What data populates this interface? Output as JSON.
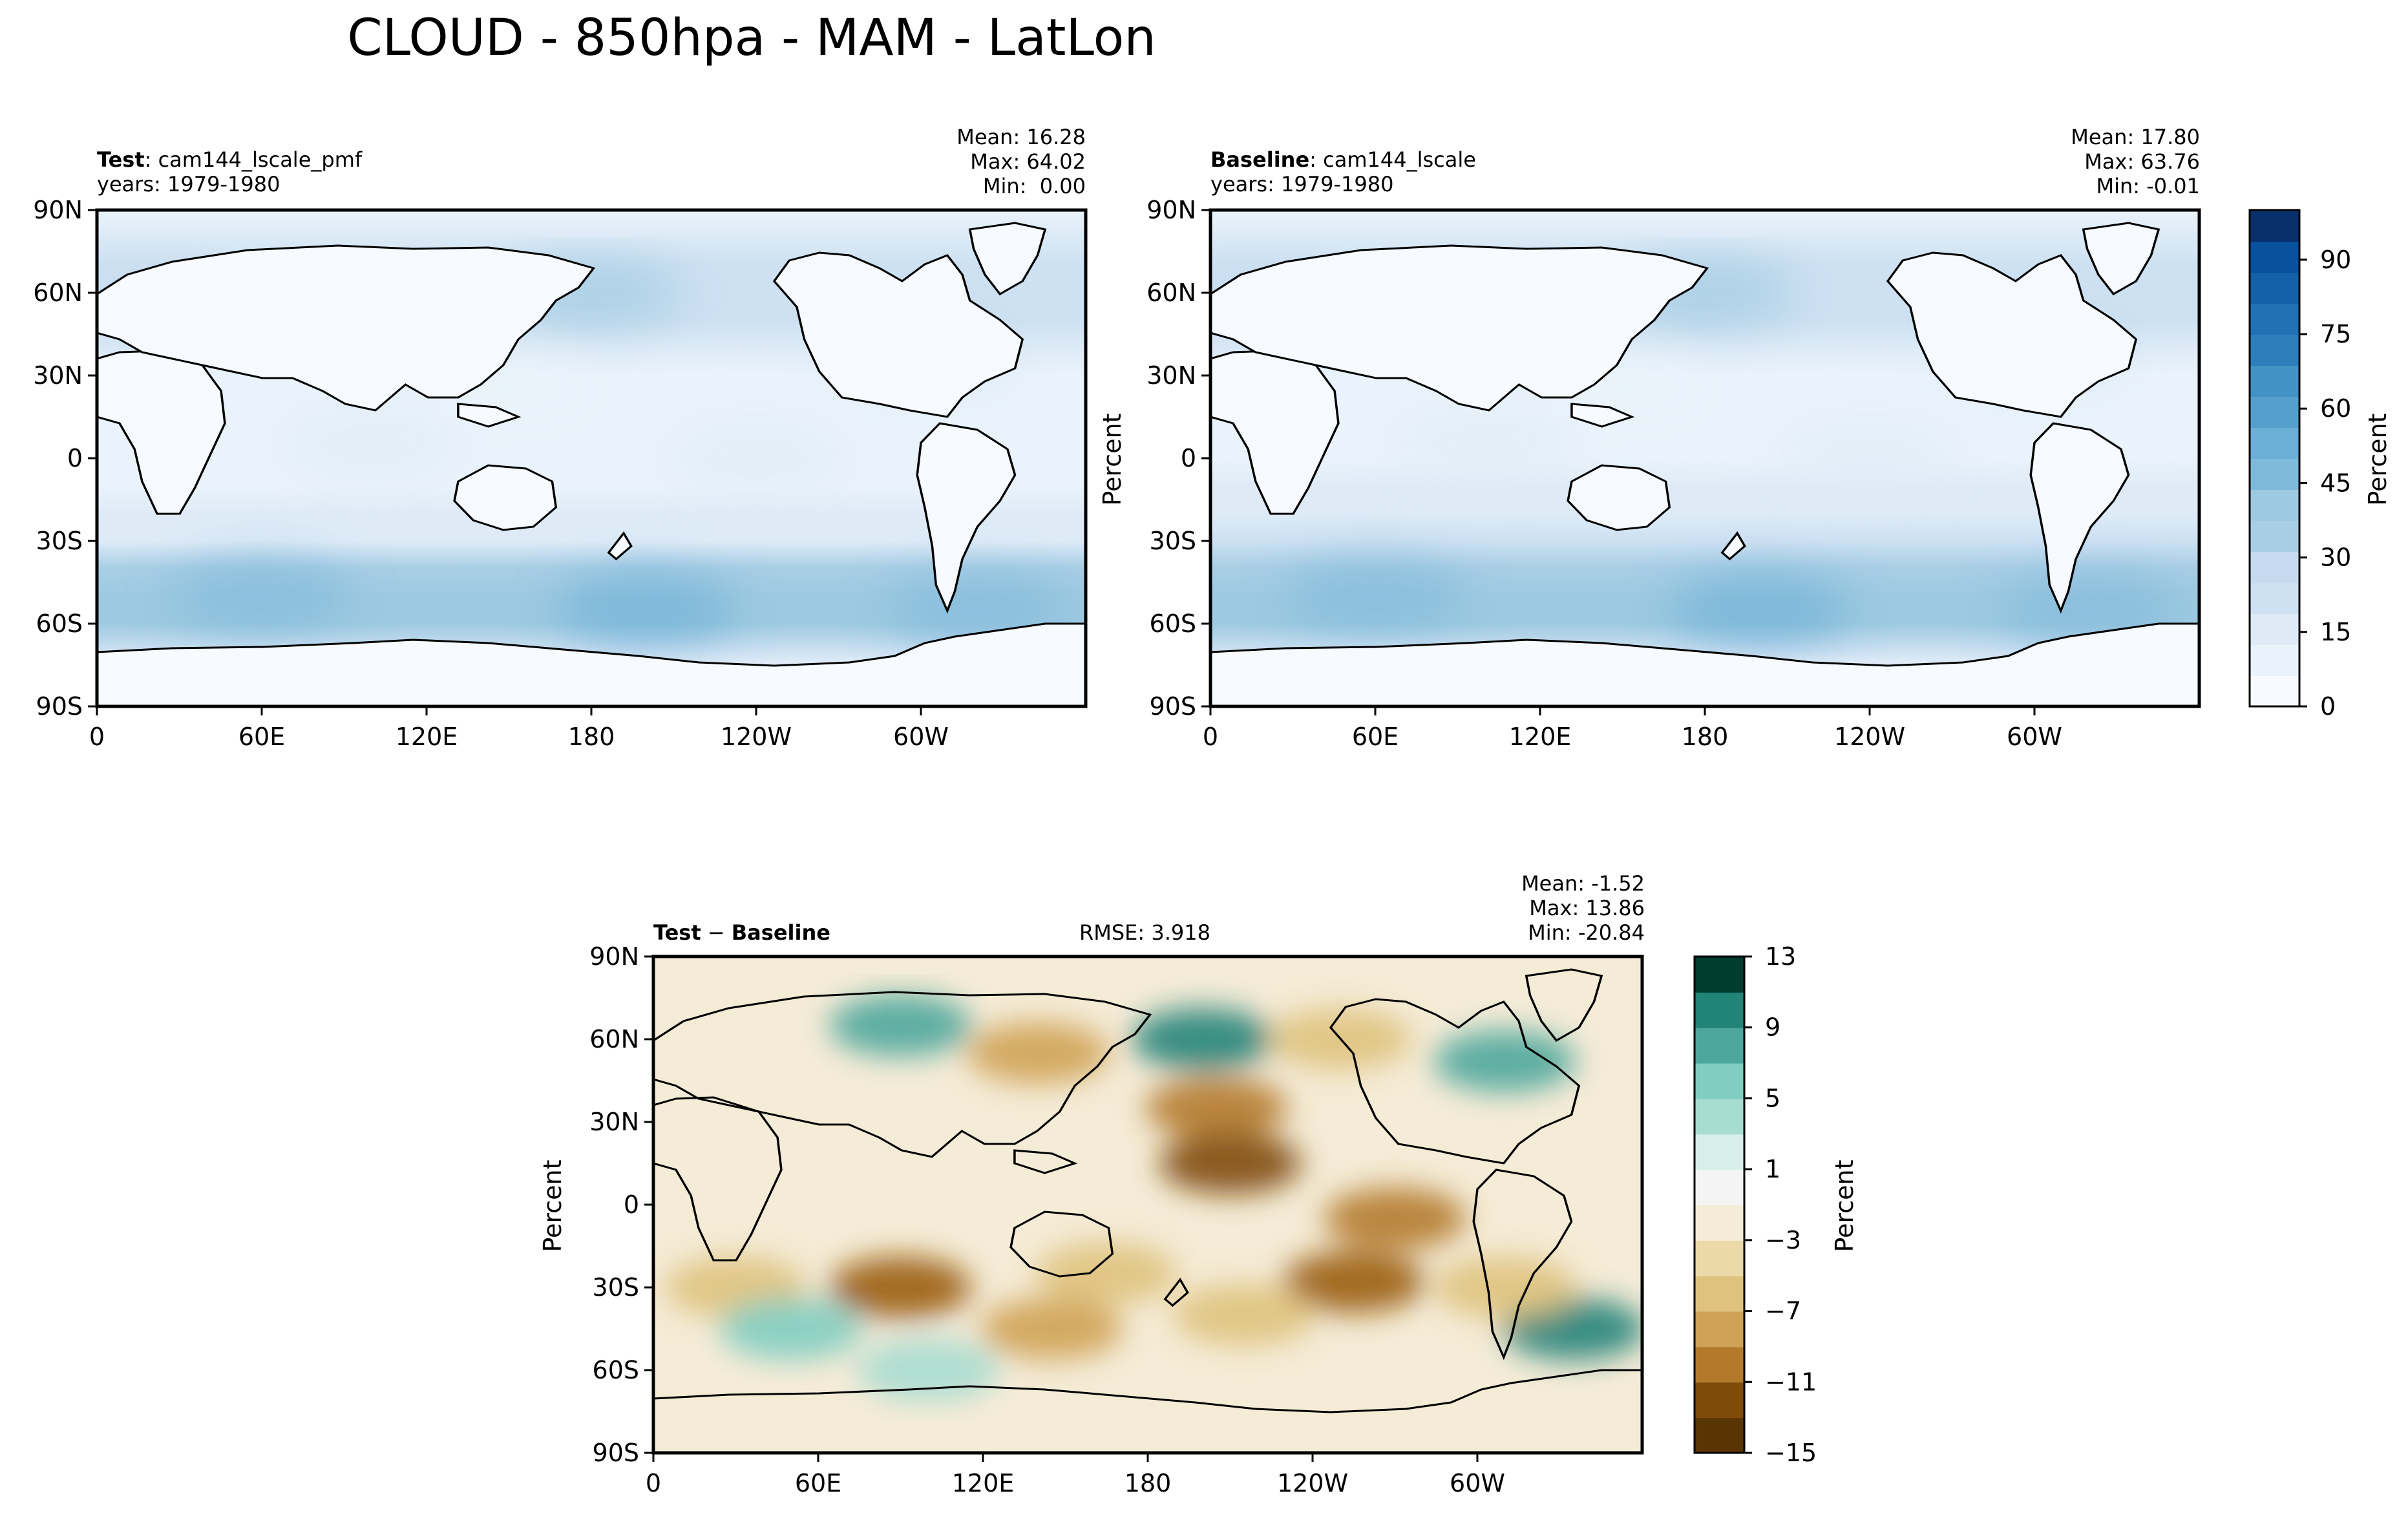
{
  "figure_title": "CLOUD - 850hpa - MAM - LatLon",
  "panels": {
    "test": {
      "label_bold": "Test",
      "label_rest": ": cam144_lscale_pmf",
      "years": "years: 1979-1980",
      "mean": "Mean: 16.28",
      "max": "Max: 64.02",
      "min": "Min:  0.00"
    },
    "baseline": {
      "label_bold": "Baseline",
      "label_rest": ": cam144_lscale",
      "years": "years: 1979-1980",
      "mean": "Mean: 17.80",
      "max": "Max: 63.76",
      "min": "Min: -0.01",
      "ylabel": "Percent"
    },
    "diff": {
      "label_bold_1": "Test",
      "label_minus": " − ",
      "label_bold_2": "Baseline",
      "rmse": "RMSE: 3.918",
      "mean": "Mean: -1.52",
      "max": "Max: 13.86",
      "min": "Min: -20.84",
      "ylabel": "Percent"
    }
  },
  "colors": {
    "blues": [
      "#f7fbff",
      "#eaf3fb",
      "#deebf7",
      "#cde1f2",
      "#c6dbef",
      "#a8cee5",
      "#9ecae1",
      "#7fb9da",
      "#6baed6",
      "#559fcd",
      "#4292c6",
      "#2f7ebc",
      "#2171b5",
      "#1461a8",
      "#08519c",
      "#08306b"
    ],
    "brbg": [
      "#5a3504",
      "#7f4b09",
      "#9a5d12",
      "#b47a2c",
      "#cfa255",
      "#dfc27d",
      "#ecd9aa",
      "#f5ecd7",
      "#f4f4f4",
      "#d7eeea",
      "#a6dcd2",
      "#80cdc1",
      "#4ea79c",
      "#228379",
      "#01665e",
      "#003c30"
    ],
    "coast": "#000000"
  },
  "chart_data": [
    {
      "type": "heatmap",
      "name": "test",
      "x_ticks": [
        "0",
        "60E",
        "120E",
        "180",
        "120W",
        "60W"
      ],
      "y_ticks": [
        "90N",
        "60N",
        "30N",
        "0",
        "30S",
        "60S",
        "90S"
      ],
      "xlim": [
        0,
        360
      ],
      "ylim": [
        -90,
        90
      ],
      "zonal_mean_percent": [
        [
          90,
          10
        ],
        [
          70,
          20
        ],
        [
          60,
          22
        ],
        [
          50,
          22
        ],
        [
          40,
          14
        ],
        [
          30,
          8
        ],
        [
          20,
          9
        ],
        [
          10,
          10
        ],
        [
          0,
          9
        ],
        [
          -10,
          11
        ],
        [
          -20,
          13
        ],
        [
          -30,
          18
        ],
        [
          -40,
          32
        ],
        [
          -50,
          42
        ],
        [
          -60,
          42
        ],
        [
          -70,
          20
        ],
        [
          -80,
          3
        ],
        [
          -90,
          3
        ]
      ]
    },
    {
      "type": "heatmap",
      "name": "baseline",
      "x_ticks": [
        "0",
        "60E",
        "120E",
        "180",
        "120W",
        "60W"
      ],
      "y_ticks": [
        "90N",
        "60N",
        "30N",
        "0",
        "30S",
        "60S",
        "90S"
      ],
      "xlim": [
        0,
        360
      ],
      "ylim": [
        -90,
        90
      ],
      "zonal_mean_percent": [
        [
          90,
          10
        ],
        [
          70,
          21
        ],
        [
          60,
          23
        ],
        [
          50,
          23
        ],
        [
          40,
          15
        ],
        [
          30,
          9
        ],
        [
          20,
          10
        ],
        [
          10,
          11
        ],
        [
          0,
          11
        ],
        [
          -10,
          13
        ],
        [
          -20,
          15
        ],
        [
          -30,
          20
        ],
        [
          -40,
          34
        ],
        [
          -50,
          43
        ],
        [
          -60,
          43
        ],
        [
          -70,
          22
        ],
        [
          -80,
          3
        ],
        [
          -90,
          3
        ]
      ]
    },
    {
      "type": "heatmap",
      "name": "test-minus-baseline",
      "x_ticks": [
        "0",
        "60E",
        "120E",
        "180",
        "120W",
        "60W"
      ],
      "y_ticks": [
        "90N",
        "60N",
        "30N",
        "0",
        "30S",
        "60S",
        "90S"
      ],
      "xlim": [
        0,
        360
      ],
      "ylim": [
        -90,
        90
      ],
      "anomalies": [
        {
          "lon": 200,
          "lat": 60,
          "value": 8
        },
        {
          "lon": 90,
          "lat": 65,
          "value": 7
        },
        {
          "lon": 310,
          "lat": 52,
          "value": 6
        },
        {
          "lon": 140,
          "lat": 55,
          "value": -7
        },
        {
          "lon": 205,
          "lat": 35,
          "value": -9
        },
        {
          "lon": 210,
          "lat": 15,
          "value": -12
        },
        {
          "lon": 270,
          "lat": -5,
          "value": -9
        },
        {
          "lon": 90,
          "lat": -30,
          "value": -11
        },
        {
          "lon": 30,
          "lat": -30,
          "value": -6
        },
        {
          "lon": 165,
          "lat": -25,
          "value": -6
        },
        {
          "lon": 255,
          "lat": -28,
          "value": -10
        },
        {
          "lon": 145,
          "lat": -45,
          "value": -8
        },
        {
          "lon": 215,
          "lat": -40,
          "value": -5
        },
        {
          "lon": 335,
          "lat": -45,
          "value": 9
        },
        {
          "lon": 50,
          "lat": -45,
          "value": 5
        },
        {
          "lon": 100,
          "lat": -60,
          "value": 4
        },
        {
          "lon": 310,
          "lat": -30,
          "value": -5
        },
        {
          "lon": 250,
          "lat": 60,
          "value": -5
        }
      ]
    }
  ],
  "colorbars": {
    "top": {
      "label": "Percent",
      "ticks": [
        "0",
        "15",
        "30",
        "45",
        "60",
        "75",
        "90"
      ],
      "range": [
        0,
        100
      ]
    },
    "bottom": {
      "label": "Percent",
      "ticks": [
        "13",
        "9",
        "5",
        "1",
        "−3",
        "−7",
        "−11",
        "−15"
      ],
      "range": [
        -15,
        13
      ]
    }
  }
}
